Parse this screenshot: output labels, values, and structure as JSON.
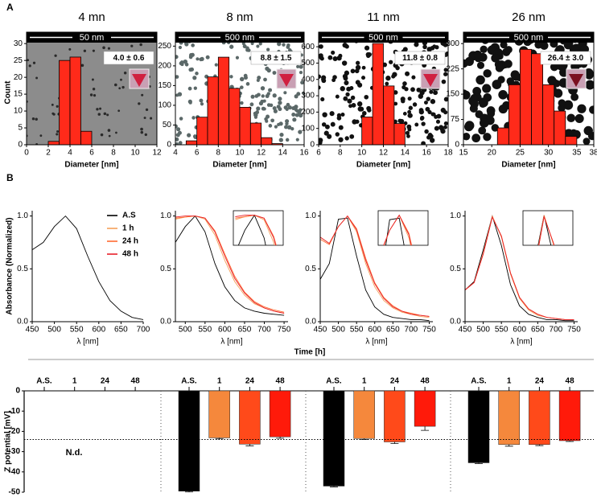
{
  "panels": [
    "A",
    "B"
  ],
  "chart_data": [
    {
      "type": "histogram",
      "title": "4 mn",
      "scale_bar": "50 nm",
      "annotation": "4.0 ± 0.6",
      "xlabel": "Diameter [nm]",
      "ylabel": "Count",
      "bins": [
        2,
        3,
        4,
        5,
        6
      ],
      "counts": [
        1,
        25,
        26,
        4
      ],
      "color": "#ff2a1a",
      "xlim": [
        0,
        12
      ],
      "xticks": [
        0,
        2,
        4,
        6,
        8,
        10,
        12
      ],
      "ylim": [
        0,
        31
      ],
      "yticks": [
        0,
        5,
        10,
        15,
        20,
        25,
        30
      ]
    },
    {
      "type": "histogram",
      "title": "8 nm",
      "scale_bar": "500 nm",
      "annotation": "8.8 ± 1.5",
      "xlabel": "Diameter [nm]",
      "bins": [
        5,
        6,
        7,
        8,
        9,
        10,
        11,
        12,
        13,
        14
      ],
      "counts": [
        10,
        70,
        172,
        222,
        143,
        95,
        55,
        18,
        3
      ],
      "color": "#ff2a1a",
      "xlim": [
        4,
        16
      ],
      "xticks": [
        4,
        6,
        8,
        10,
        12,
        14,
        16
      ],
      "ylim": [
        0,
        265
      ],
      "yticks": [
        0,
        50,
        100,
        150,
        200,
        250
      ]
    },
    {
      "type": "histogram",
      "title": "11 nm",
      "scale_bar": "500 nm",
      "annotation": "11.8 ± 0.8",
      "xlabel": "Diameter [nm]",
      "bins": [
        10,
        11,
        12,
        13,
        14
      ],
      "counts": [
        170,
        620,
        360,
        130
      ],
      "color": "#ff2a1a",
      "xlim": [
        6,
        18
      ],
      "xticks": [
        6,
        8,
        10,
        12,
        14,
        16,
        18
      ],
      "ylim": [
        0,
        640
      ],
      "yticks": [
        0,
        100,
        200,
        300,
        400,
        500,
        600
      ]
    },
    {
      "type": "histogram",
      "title": "26 nm",
      "scale_bar": "500 nm",
      "annotation": "26.4 ± 3.0",
      "xlabel": "Diameter [nm]",
      "bins": [
        21,
        23,
        25,
        27,
        29,
        31,
        33,
        35
      ],
      "counts": [
        50,
        178,
        283,
        270,
        178,
        100,
        25
      ],
      "color": "#ff2a1a",
      "xlim": [
        15,
        38
      ],
      "xticks": [
        15,
        20,
        25,
        30,
        35,
        38
      ],
      "ylim": [
        0,
        310
      ],
      "yticks": [
        0,
        75,
        150,
        225,
        300
      ]
    },
    {
      "type": "line",
      "xlabel": "λ [nm]",
      "ylabel": "Absorbance (Normalized)",
      "x": [
        450,
        475,
        500,
        525,
        550,
        575,
        600,
        625,
        650,
        675,
        700
      ],
      "series": [
        {
          "color": "#000000",
          "values": [
            0.68,
            0.75,
            0.9,
            1.0,
            0.88,
            0.62,
            0.38,
            0.2,
            0.1,
            0.04,
            0.02
          ]
        }
      ],
      "xlim": [
        450,
        700
      ],
      "xticks": [
        450,
        500,
        550,
        600,
        650,
        700
      ],
      "ylim": [
        0,
        1.05
      ],
      "yticks": [
        {
          "value": 0,
          "label": "0.0"
        },
        {
          "value": 0.5,
          "label": "0.5"
        },
        {
          "value": 1,
          "label": "1.0"
        }
      ]
    },
    {
      "type": "line",
      "xlabel": "λ [nm]",
      "legend": "left",
      "inset": true,
      "x": [
        475,
        500,
        525,
        550,
        575,
        600,
        625,
        650,
        675,
        700,
        725,
        750
      ],
      "series": [
        {
          "name": "A.S",
          "color": "#000000",
          "values": [
            0.75,
            0.9,
            1.0,
            0.85,
            0.55,
            0.33,
            0.2,
            0.13,
            0.1,
            0.08,
            0.07,
            0.06
          ]
        },
        {
          "name": "1 h",
          "color": "#f5a05a",
          "values": [
            0.97,
            0.99,
            1.0,
            0.97,
            0.82,
            0.58,
            0.38,
            0.25,
            0.17,
            0.13,
            0.1,
            0.08
          ]
        },
        {
          "name": "24 h",
          "color": "#ff6a30",
          "values": [
            0.98,
            0.99,
            1.0,
            0.98,
            0.86,
            0.64,
            0.43,
            0.28,
            0.19,
            0.14,
            0.11,
            0.09
          ]
        },
        {
          "name": "48 h",
          "color": "#e8202a",
          "values": [
            0.99,
            1.0,
            1.0,
            0.98,
            0.85,
            0.62,
            0.41,
            0.27,
            0.18,
            0.13,
            0.1,
            0.08
          ]
        }
      ],
      "xlim": [
        475,
        760
      ],
      "xticks": [
        500,
        550,
        600,
        650,
        700,
        750
      ],
      "ylim": [
        0,
        1.05
      ],
      "yticks": [
        {
          "value": 0,
          "label": "0.0"
        },
        {
          "value": 0.5,
          "label": "0.5"
        },
        {
          "value": 1,
          "label": "1.0"
        }
      ]
    },
    {
      "type": "line",
      "xlabel": "λ [nm]",
      "inset": true,
      "x": [
        450,
        475,
        500,
        525,
        550,
        575,
        600,
        625,
        650,
        675,
        700,
        725,
        750
      ],
      "series": [
        {
          "color": "#000000",
          "values": [
            0.4,
            0.55,
            0.97,
            0.98,
            0.62,
            0.3,
            0.14,
            0.07,
            0.04,
            0.03,
            0.02,
            0.02,
            0.01
          ]
        },
        {
          "color": "#f5a05a",
          "values": [
            0.8,
            0.74,
            0.9,
            1.0,
            0.85,
            0.55,
            0.33,
            0.2,
            0.13,
            0.09,
            0.07,
            0.05,
            0.04
          ]
        },
        {
          "color": "#ff6a30",
          "values": [
            0.78,
            0.73,
            0.9,
            1.0,
            0.88,
            0.6,
            0.37,
            0.23,
            0.15,
            0.1,
            0.08,
            0.06,
            0.05
          ]
        },
        {
          "color": "#e8202a",
          "values": [
            0.8,
            0.74,
            0.9,
            1.0,
            0.87,
            0.58,
            0.36,
            0.22,
            0.14,
            0.1,
            0.07,
            0.06,
            0.05
          ]
        }
      ],
      "xlim": [
        450,
        760
      ],
      "xticks": [
        450,
        500,
        550,
        600,
        650,
        700,
        750
      ],
      "ylim": [
        0,
        1.05
      ],
      "yticks": [
        {
          "value": 0,
          "label": "0.0"
        },
        {
          "value": 0.5,
          "label": "0.5"
        },
        {
          "value": 1,
          "label": "1.0"
        }
      ]
    },
    {
      "type": "line",
      "xlabel": "λ [nm]",
      "inset": true,
      "x": [
        450,
        475,
        500,
        525,
        550,
        575,
        600,
        625,
        650,
        675,
        700,
        725,
        750
      ],
      "series": [
        {
          "color": "#000000",
          "values": [
            0.3,
            0.38,
            0.68,
            1.0,
            0.72,
            0.35,
            0.15,
            0.07,
            0.04,
            0.02,
            0.02,
            0.01,
            0.01
          ]
        },
        {
          "color": "#f5a05a",
          "values": [
            0.3,
            0.37,
            0.65,
            1.0,
            0.8,
            0.45,
            0.22,
            0.11,
            0.06,
            0.04,
            0.03,
            0.02,
            0.02
          ]
        },
        {
          "color": "#ff6a30",
          "values": [
            0.3,
            0.37,
            0.64,
            0.99,
            0.81,
            0.46,
            0.23,
            0.12,
            0.07,
            0.04,
            0.03,
            0.02,
            0.02
          ]
        },
        {
          "color": "#e8202a",
          "values": [
            0.3,
            0.37,
            0.64,
            0.99,
            0.81,
            0.46,
            0.23,
            0.12,
            0.07,
            0.04,
            0.03,
            0.02,
            0.02
          ]
        }
      ],
      "xlim": [
        450,
        760
      ],
      "xticks": [
        450,
        500,
        550,
        600,
        650,
        700,
        750
      ],
      "ylim": [
        0,
        1.05
      ],
      "yticks": [
        {
          "value": 0,
          "label": "0.0"
        },
        {
          "value": 0.5,
          "label": "0.5"
        },
        {
          "value": 1,
          "label": "1.0"
        }
      ]
    },
    {
      "type": "grouped_bar",
      "title": "Time [h]",
      "ylabel": "Z potential [mV]",
      "categories": [
        "A.S.",
        "1",
        "24",
        "48"
      ],
      "colors": [
        "#000000",
        "#f5883c",
        "#ff4a1a",
        "#ff1a0a"
      ],
      "groups": [
        {
          "values": [
            null,
            null,
            null,
            null
          ],
          "annotation": "N.d."
        },
        {
          "values": [
            -49.5,
            -23.2,
            -26.3,
            -22.7
          ],
          "errors": [
            0.4,
            0.5,
            0.8,
            0.7
          ]
        },
        {
          "values": [
            -47,
            -23.5,
            -25.2,
            -17.5
          ],
          "errors": [
            0.4,
            0.5,
            0.8,
            2
          ]
        },
        {
          "values": [
            -35.5,
            -26.5,
            -26.5,
            -24.6
          ],
          "errors": [
            0.4,
            0.8,
            0.5,
            0.4
          ]
        }
      ],
      "ylim": [
        -50,
        0
      ],
      "yticks": [
        0,
        -10,
        -20,
        -30,
        -40,
        -50
      ],
      "reference_line": -24
    }
  ]
}
